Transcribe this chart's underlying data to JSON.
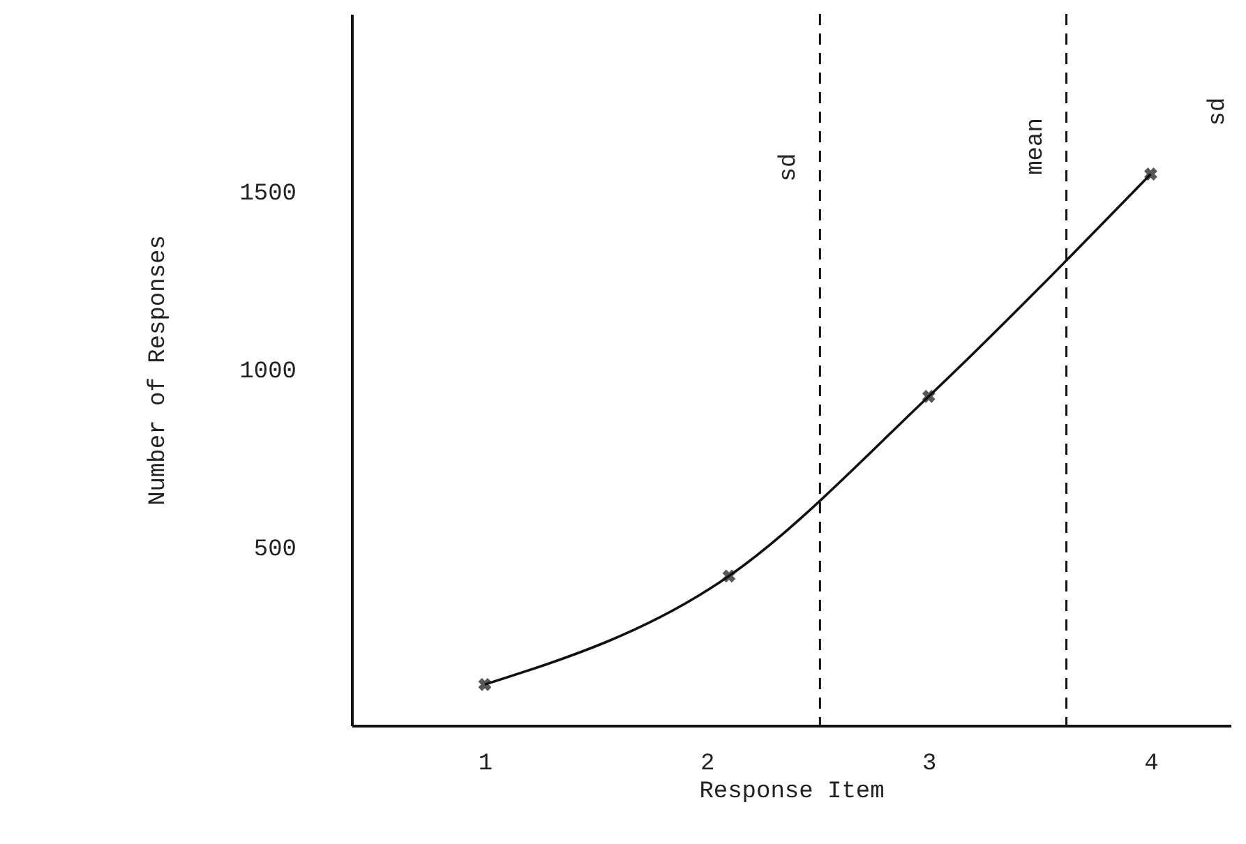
{
  "chart_data": {
    "type": "line",
    "xlabel": "Response Item",
    "ylabel": "Number of Responses",
    "x": [
      1,
      2.1,
      3,
      4
    ],
    "values": [
      115,
      420,
      925,
      1550
    ],
    "color": "#111111",
    "marker": "cross",
    "line_style": "solid",
    "xlim": [
      0.4,
      4.36
    ],
    "xticks": [
      1,
      2,
      3,
      4
    ],
    "ylim": [
      0,
      2000
    ],
    "yticks": [
      500,
      1000,
      1500
    ],
    "grid": false,
    "ref_lines": [
      {
        "axis": "x",
        "value": 2.51,
        "label": "sd",
        "line_style": "dashed",
        "color": "#111111"
      },
      {
        "axis": "x",
        "value": 3.62,
        "label": "mean",
        "line_style": "dashed",
        "color": "#111111"
      }
    ],
    "annotations": [
      "sd"
    ]
  }
}
